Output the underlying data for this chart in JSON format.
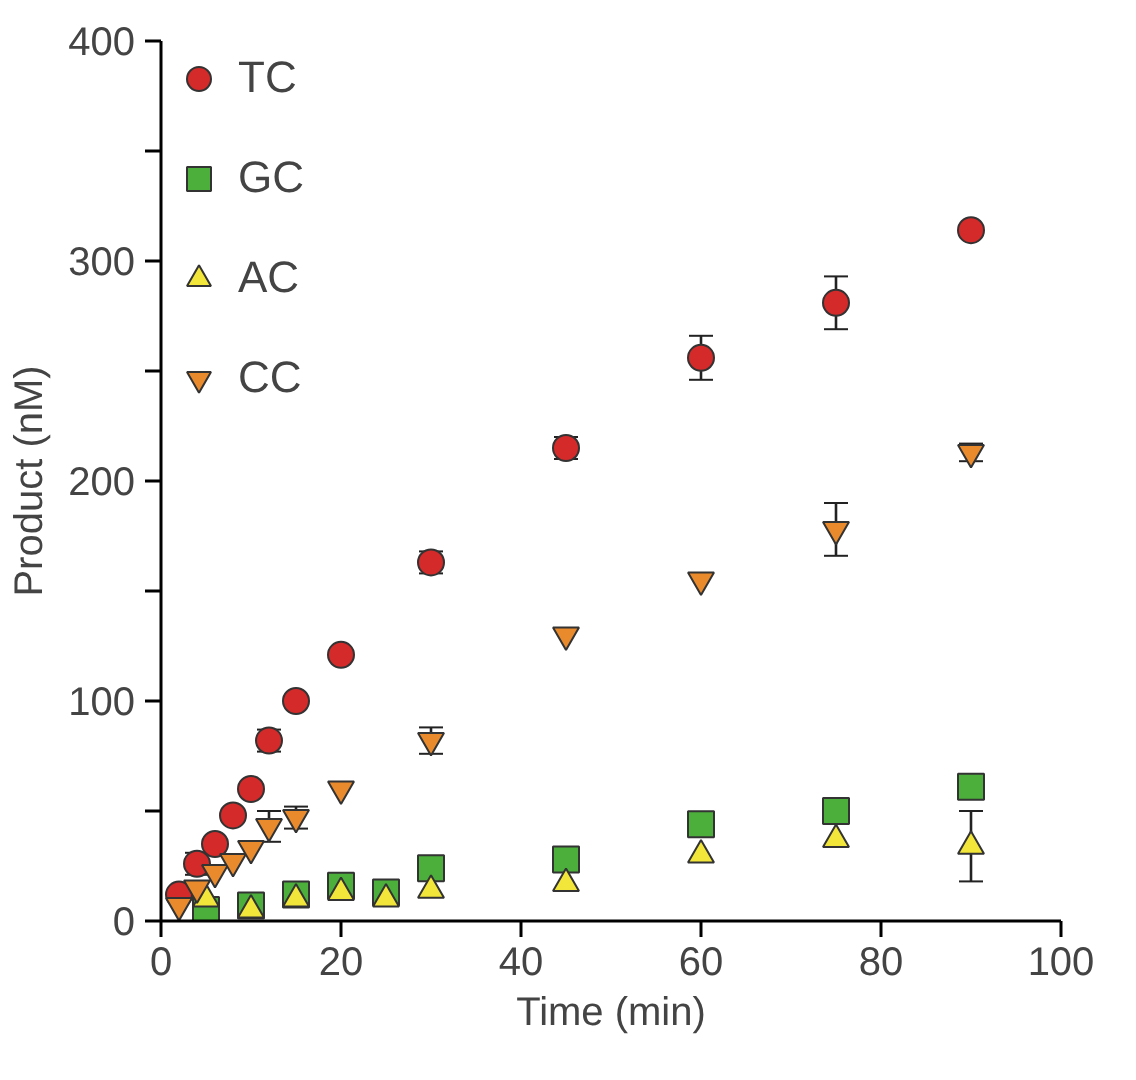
{
  "chart_data": {
    "type": "scatter",
    "xlabel": "Time (min)",
    "ylabel": "Product (nM)",
    "xlim": [
      0,
      100
    ],
    "ylim": [
      0,
      400
    ],
    "xticks": [
      0,
      20,
      40,
      60,
      80,
      100
    ],
    "yticks": [
      0,
      {
        "value": 50,
        "label": null
      },
      100,
      {
        "value": 150,
        "label": null
      },
      200,
      {
        "value": 250,
        "label": null
      },
      300,
      {
        "value": 350,
        "label": null
      },
      400
    ],
    "grid": false,
    "legend": "top left",
    "series": [
      {
        "name": "TC",
        "color": "#d42a2a",
        "marker": "circle",
        "x": [
          2,
          4,
          6,
          8,
          10,
          12,
          15,
          20,
          30,
          45,
          60,
          75,
          90
        ],
        "values": [
          12,
          26,
          35,
          48,
          60,
          82,
          100,
          121,
          163,
          215,
          256,
          281,
          314
        ],
        "errors": [
          null,
          5,
          null,
          null,
          null,
          5,
          null,
          null,
          5,
          5,
          10,
          12,
          null
        ]
      },
      {
        "name": "GC",
        "color": "#4caf3c",
        "marker": "square",
        "x": [
          5,
          10,
          15,
          20,
          25,
          30,
          45,
          60,
          75,
          90
        ],
        "values": [
          5,
          7,
          12,
          16,
          13,
          24,
          28,
          44,
          50,
          61
        ],
        "errors": [
          null,
          null,
          5,
          4,
          null,
          null,
          null,
          null,
          null,
          null
        ]
      },
      {
        "name": "AC",
        "color": "#f2e63a",
        "marker": "triangle",
        "x": [
          5,
          10,
          15,
          20,
          25,
          30,
          45,
          60,
          75,
          90
        ],
        "values": [
          10,
          5,
          10,
          13,
          10,
          14,
          17,
          30,
          37,
          34
        ],
        "errors": [
          null,
          null,
          null,
          null,
          null,
          null,
          null,
          null,
          null,
          16
        ]
      },
      {
        "name": "CC",
        "color": "#e98a2c",
        "x": [
          2,
          4,
          6,
          8,
          10,
          12,
          15,
          20,
          30,
          45,
          60,
          75,
          90
        ],
        "values": [
          7,
          15,
          22,
          27,
          33,
          43,
          47,
          60,
          82,
          130,
          155,
          178,
          213
        ],
        "errors": [
          null,
          null,
          null,
          null,
          null,
          7,
          5,
          null,
          6,
          null,
          null,
          12,
          4
        ]
      }
    ]
  }
}
